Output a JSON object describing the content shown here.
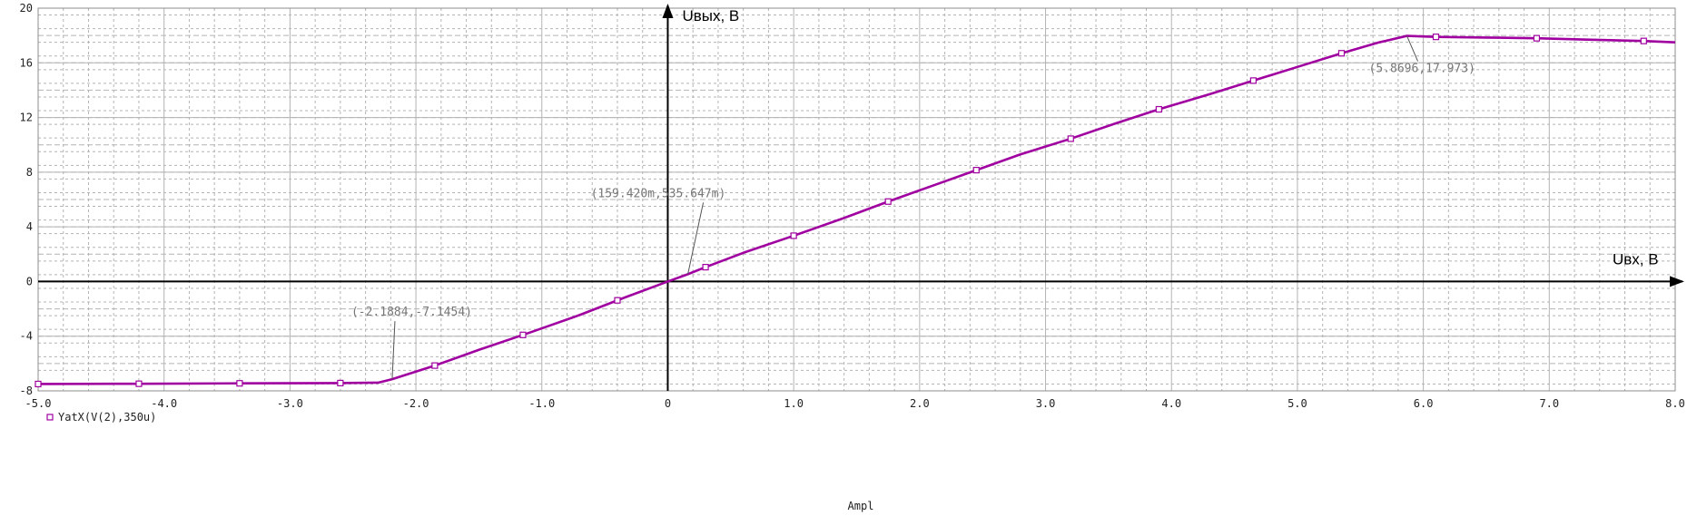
{
  "chart_data": {
    "type": "line",
    "xlabel": "Ampl",
    "xlim": [
      -5.0,
      8.0
    ],
    "ylim": [
      -8,
      20
    ],
    "x_ticks": [
      -5.0,
      -4.0,
      -3.0,
      -2.0,
      -1.0,
      0,
      1.0,
      2.0,
      3.0,
      4.0,
      5.0,
      6.0,
      7.0,
      8.0
    ],
    "x_tick_labels": [
      "-5.0",
      "-4.0",
      "-3.0",
      "-2.0",
      "-1.0",
      "0",
      "1.0",
      "2.0",
      "3.0",
      "4.0",
      "5.0",
      "6.0",
      "7.0",
      "8.0"
    ],
    "y_ticks": [
      -8,
      -4,
      0,
      4,
      8,
      12,
      16,
      20
    ],
    "y_tick_labels": [
      "-8",
      "-4",
      "0",
      "4",
      "8",
      "12",
      "16",
      "20"
    ],
    "grid": true,
    "inner_axis_labels": {
      "y": "Uвых, В",
      "x": "Uвх, В"
    },
    "series": [
      {
        "name": "YatX(V(2),350u)",
        "color": "#a000a0",
        "x": [
          -5.0,
          -4.2,
          -3.4,
          -2.6,
          -2.3,
          -2.1884,
          -1.85,
          -1.5,
          -1.1,
          -0.7,
          -0.35,
          0,
          0.159,
          0.3,
          0.6,
          1.0,
          1.4,
          1.75,
          2.1,
          2.45,
          2.8,
          3.2,
          3.55,
          3.9,
          4.3,
          4.65,
          5.0,
          5.35,
          5.65,
          5.8696,
          6.1,
          6.5,
          6.9,
          7.3,
          7.75,
          8.0
        ],
        "y": [
          -7.5,
          -7.48,
          -7.45,
          -7.43,
          -7.4,
          -7.1454,
          -6.15,
          -5.0,
          -3.75,
          -2.45,
          -1.2,
          0,
          0.5356,
          1.05,
          2.1,
          3.35,
          4.65,
          5.85,
          7.0,
          8.15,
          9.3,
          10.45,
          11.55,
          12.6,
          13.7,
          14.7,
          15.7,
          16.7,
          17.5,
          17.973,
          17.9,
          17.85,
          17.8,
          17.7,
          17.6,
          17.5
        ]
      }
    ],
    "markers": {
      "x": [
        -5.0,
        -4.2,
        -3.4,
        -2.6,
        -1.85,
        -1.15,
        -0.4,
        0.3,
        1.0,
        1.75,
        2.45,
        3.2,
        3.9,
        4.65,
        5.35,
        6.1,
        6.9,
        7.75
      ]
    },
    "annotations": [
      {
        "text": "(5.8696,17.973)",
        "x": 5.8696,
        "y": 17.973
      },
      {
        "text": "(159.420m,535.647m)",
        "x": 0.15942,
        "y": 0.535647
      },
      {
        "text": "(-2.1884,-7.1454)",
        "x": -2.1884,
        "y": -7.1454
      }
    ],
    "legend": {
      "position": "bottom-left",
      "entries": [
        "YatX(V(2),350u)"
      ]
    },
    "colors": {
      "trace": "#a000a0",
      "grid": "#b4b4b4",
      "axis": "#000000"
    }
  }
}
